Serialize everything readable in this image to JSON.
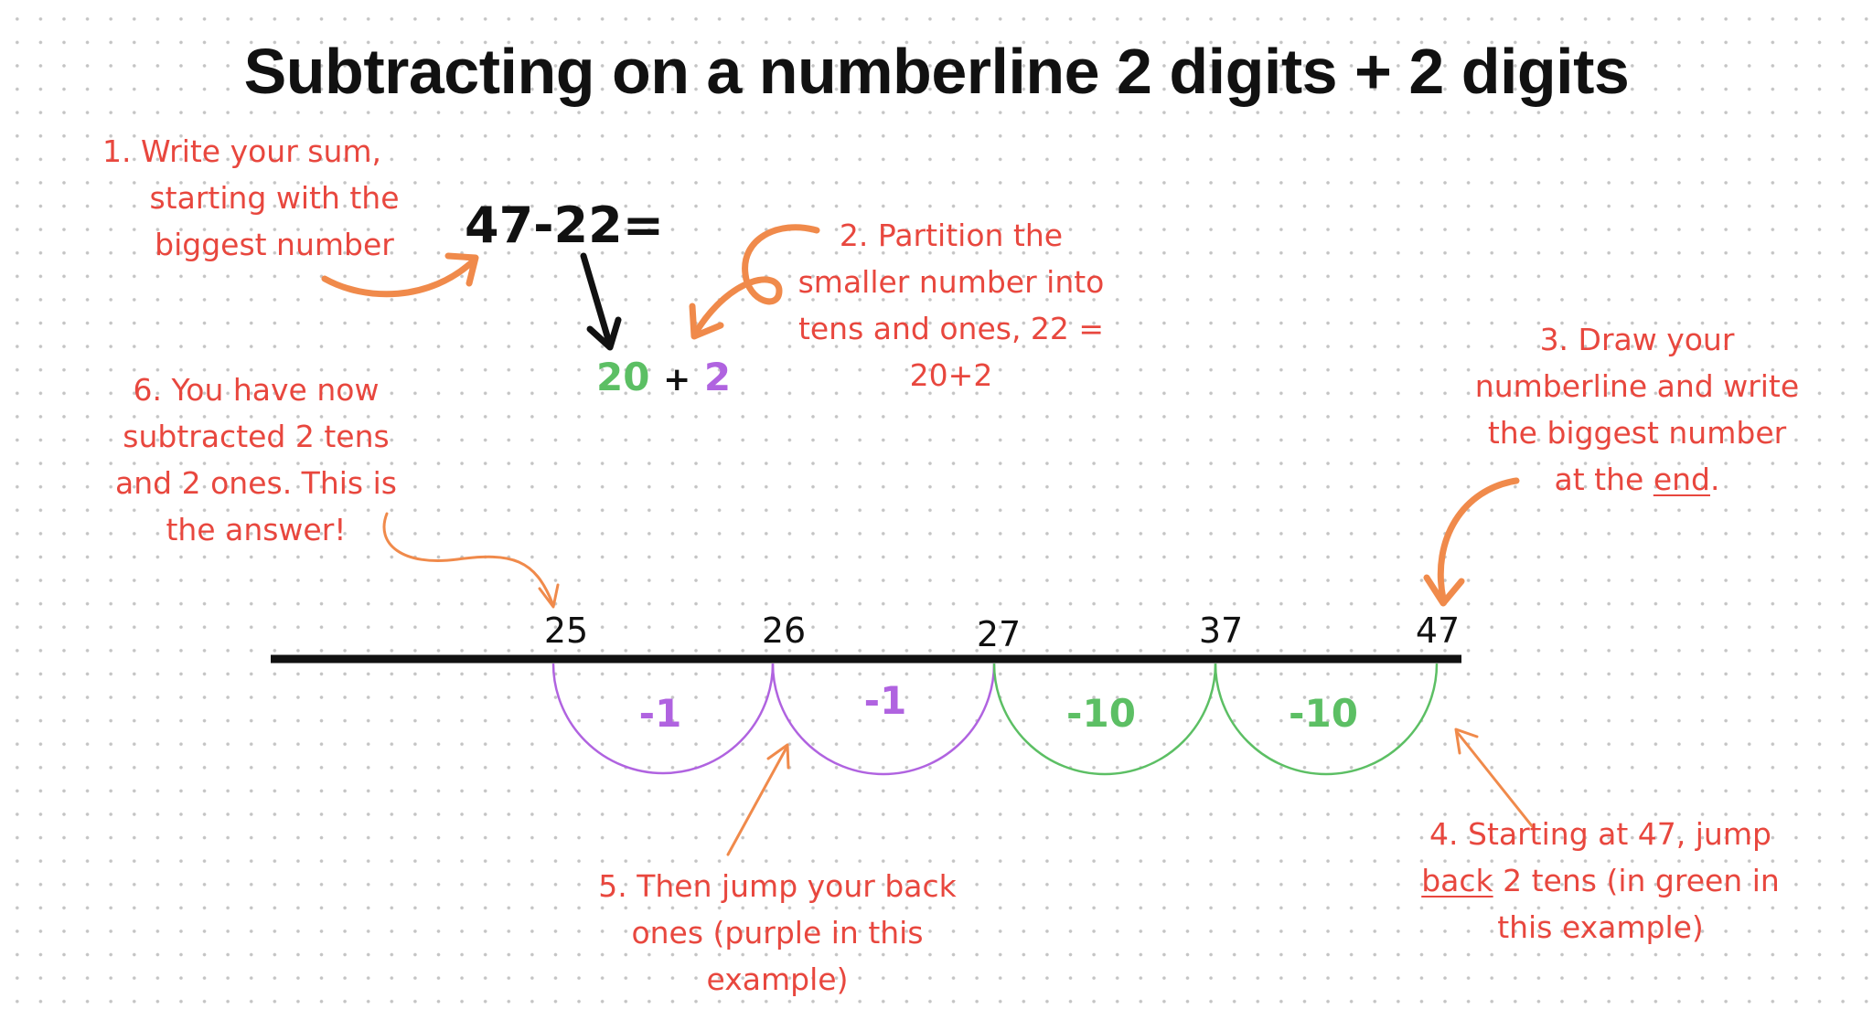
{
  "title": "Subtracting on a numberline 2 digits + 2 digits",
  "colors": {
    "note": "#e8473e",
    "arrow": "#f08a4b",
    "tens": "#5cbf64",
    "ones": "#b063e0",
    "line": "#111111"
  },
  "sum": "47-22=",
  "partition": {
    "tens": "20",
    "plus": "+",
    "ones": "2"
  },
  "steps": {
    "step1": [
      "1.  Write your sum,",
      "starting with the",
      "biggest number"
    ],
    "step2": [
      "2. Partition the",
      "smaller number into",
      "tens and ones, 22 =",
      "20+2"
    ],
    "step3": {
      "line1": "3. Draw your",
      "line2": "numberline and write",
      "line3": "the biggest number",
      "line4_pre": "at the ",
      "line4_u": "end",
      "line4_post": "."
    },
    "step4": {
      "line1": "4. Starting at 47, jump",
      "line2_u": "back",
      "line2_post": " 2 tens (in green in",
      "line3": "this example)"
    },
    "step5": [
      "5. Then jump your back",
      "ones (purple in this",
      "example)"
    ],
    "step6": [
      "6. You have now",
      "subtracted 2 tens",
      "and 2 ones. This is",
      "the answer!"
    ]
  },
  "numberline": {
    "ticks": [
      "25",
      "26",
      "27",
      "37",
      "47"
    ],
    "jumps": [
      {
        "label": "-1",
        "kind": "ones"
      },
      {
        "label": "-1",
        "kind": "ones"
      },
      {
        "label": "-10",
        "kind": "tens"
      },
      {
        "label": "-10",
        "kind": "tens"
      }
    ]
  }
}
